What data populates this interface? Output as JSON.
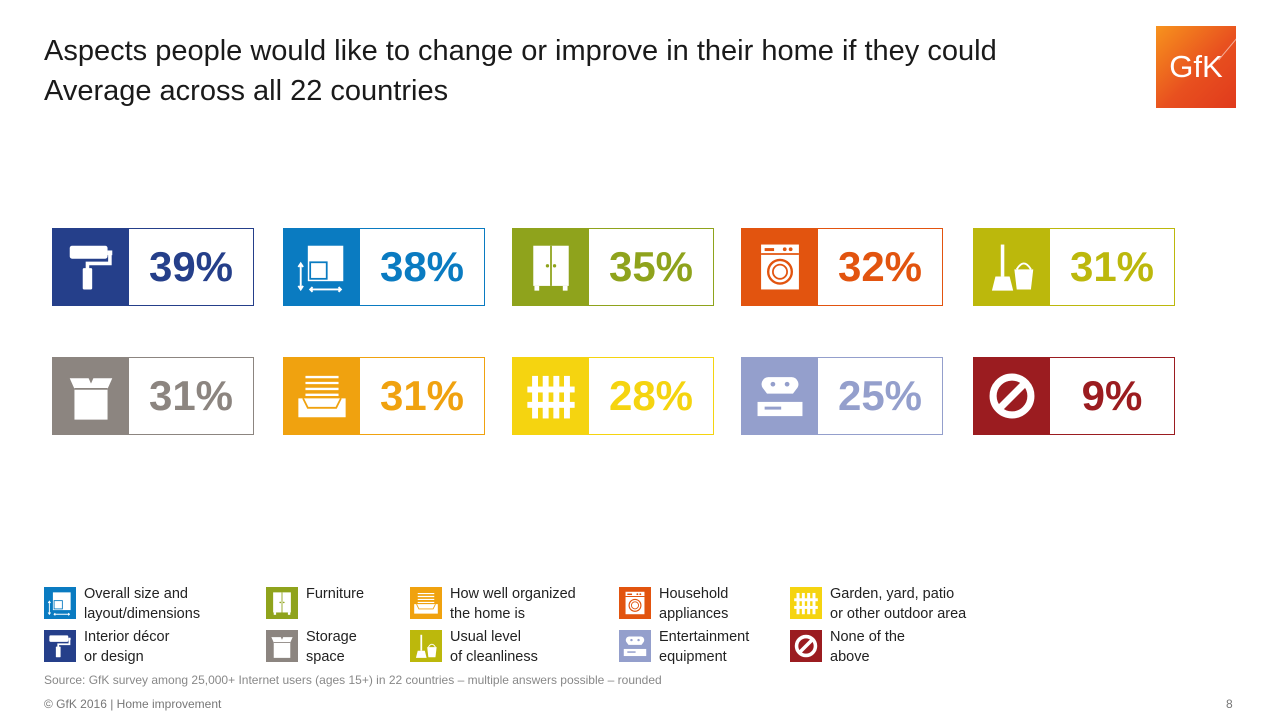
{
  "header": {
    "title_line1": "Aspects people would like to change or improve in their home if they could",
    "title_line2": "Average across all 22 countries",
    "logo_text": "GfK"
  },
  "chart_data": {
    "type": "table",
    "title": "Aspects people would like to change or improve in their home if they could",
    "subtitle": "Average across all 22 countries",
    "unit": "%",
    "items": [
      {
        "category": "Interior décor or design",
        "value": 39,
        "label": "39%",
        "color": "#253f8a",
        "icon": "paint-roller-icon"
      },
      {
        "category": "Overall size and layout/dimensions",
        "value": 38,
        "label": "38%",
        "color": "#0a7bc1",
        "icon": "floor-plan-icon"
      },
      {
        "category": "Furniture",
        "value": 35,
        "label": "35%",
        "color": "#8fa31c",
        "icon": "wardrobe-icon"
      },
      {
        "category": "Household appliances",
        "value": 32,
        "label": "32%",
        "color": "#e2540f",
        "icon": "washing-machine-icon"
      },
      {
        "category": "Usual level of cleanliness",
        "value": 31,
        "label": "31%",
        "color": "#bcb80c",
        "icon": "mop-bucket-icon"
      },
      {
        "category": "Storage space",
        "value": 31,
        "label": "31%",
        "color": "#8c8580",
        "icon": "storage-box-icon"
      },
      {
        "category": "How well organized the home is",
        "value": 31,
        "label": "31%",
        "color": "#f0a20f",
        "icon": "drawer-icon"
      },
      {
        "category": "Garden, yard, patio or other outdoor area",
        "value": 28,
        "label": "28%",
        "color": "#f5d410",
        "icon": "fence-icon"
      },
      {
        "category": "Entertainment equipment",
        "value": 25,
        "label": "25%",
        "color": "#949fcc",
        "icon": "game-console-icon"
      },
      {
        "category": "None of the above",
        "value": 9,
        "label": "9%",
        "color": "#9b1c20",
        "icon": "prohibited-icon"
      }
    ]
  },
  "legend": [
    {
      "line1": "Overall size and",
      "line2": "layout/dimensions",
      "color": "#0a7bc1",
      "icon": "floor-plan-icon"
    },
    {
      "line1": "Furniture",
      "line2": "",
      "color": "#8fa31c",
      "icon": "wardrobe-icon"
    },
    {
      "line1": "How well organized",
      "line2": "the home is",
      "color": "#f0a20f",
      "icon": "drawer-icon"
    },
    {
      "line1": "Household",
      "line2": "appliances",
      "color": "#e2540f",
      "icon": "washing-machine-icon"
    },
    {
      "line1": "Garden, yard, patio",
      "line2": "or other outdoor area",
      "color": "#f5d410",
      "icon": "fence-icon"
    },
    {
      "line1": "Interior décor",
      "line2": "or design",
      "color": "#253f8a",
      "icon": "paint-roller-icon"
    },
    {
      "line1": "Storage",
      "line2": "space",
      "color": "#8c8580",
      "icon": "storage-box-icon"
    },
    {
      "line1": "Usual level",
      "line2": "of cleanliness",
      "color": "#bcb80c",
      "icon": "mop-bucket-icon"
    },
    {
      "line1": "Entertainment",
      "line2": "equipment",
      "color": "#949fcc",
      "icon": "game-console-icon"
    },
    {
      "line1": "None of the",
      "line2": "above",
      "color": "#9b1c20",
      "icon": "prohibited-icon"
    }
  ],
  "footer": {
    "source": "Source: GfK survey among 25,000+ Internet users (ages 15+) in 22 countries – multiple answers possible – rounded",
    "copyright": "© GfK 2016 | Home improvement",
    "page_number": "8"
  }
}
